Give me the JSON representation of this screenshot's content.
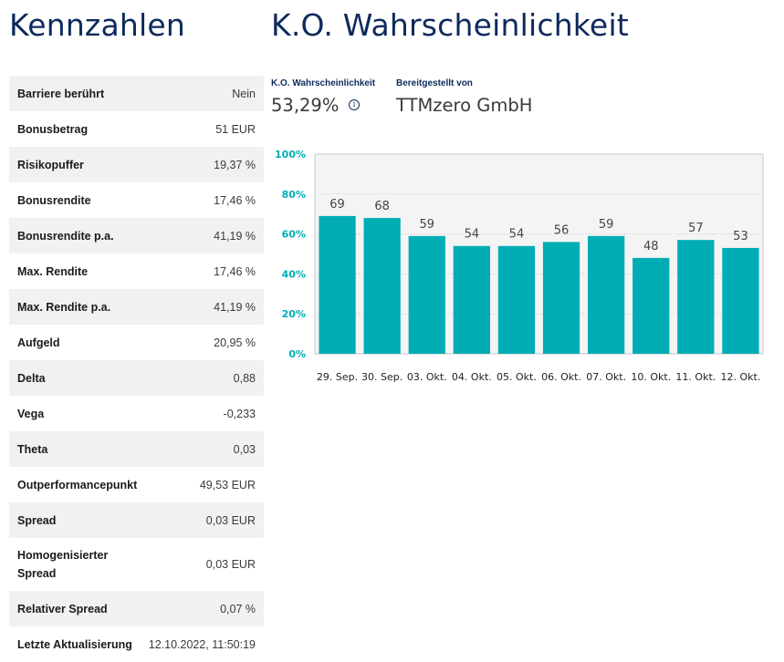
{
  "kennzahlen": {
    "title": "Kennzahlen",
    "rows": [
      {
        "label": "Barriere berührt",
        "value": "Nein"
      },
      {
        "label": "Bonusbetrag",
        "value": "51 EUR"
      },
      {
        "label": "Risikopuffer",
        "value": "19,37 %"
      },
      {
        "label": "Bonusrendite",
        "value": "17,46 %"
      },
      {
        "label": "Bonusrendite p.a.",
        "value": "41,19 %"
      },
      {
        "label": "Max. Rendite",
        "value": "17,46 %"
      },
      {
        "label": "Max. Rendite p.a.",
        "value": "41,19 %"
      },
      {
        "label": "Aufgeld",
        "value": "20,95 %"
      },
      {
        "label": "Delta",
        "value": "0,88"
      },
      {
        "label": "Vega",
        "value": "-0,233"
      },
      {
        "label": "Theta",
        "value": "0,03"
      },
      {
        "label": "Outperformancepunkt",
        "value": "49,53 EUR"
      },
      {
        "label": "Spread",
        "value": "0,03 EUR"
      },
      {
        "label": "Homogenisierter Spread",
        "value": "0,03 EUR"
      },
      {
        "label": "Relativer Spread",
        "value": "0,07 %"
      },
      {
        "label": "Letzte Aktualisierung",
        "value": "12.10.2022, 11:50:19"
      }
    ]
  },
  "ko": {
    "title": "K.O. Wahrscheinlichkeit",
    "probability_label": "K.O. Wahrscheinlichkeit",
    "probability_value": "53,29%",
    "info_icon": "info-circle-icon",
    "provider_label": "Bereitgestellt von",
    "provider_value": "TTMzero GmbH"
  },
  "chart_data": {
    "type": "bar",
    "categories": [
      "29. Sep.",
      "30. Sep.",
      "03. Okt.",
      "04. Okt.",
      "05. Okt.",
      "06. Okt.",
      "07. Okt.",
      "10. Okt.",
      "11. Okt.",
      "12. Okt."
    ],
    "values": [
      69,
      68,
      59,
      54,
      54,
      56,
      59,
      48,
      57,
      53
    ],
    "yticks": [
      "0%",
      "20%",
      "40%",
      "60%",
      "80%",
      "100%"
    ],
    "ylim": [
      0,
      100
    ],
    "bar_color": "#00adb5",
    "grid": true,
    "data_labels": true
  },
  "colors": {
    "accent": "#0d2a5c",
    "teal": "#00adb5",
    "row_alt": "#f1f1f1"
  }
}
